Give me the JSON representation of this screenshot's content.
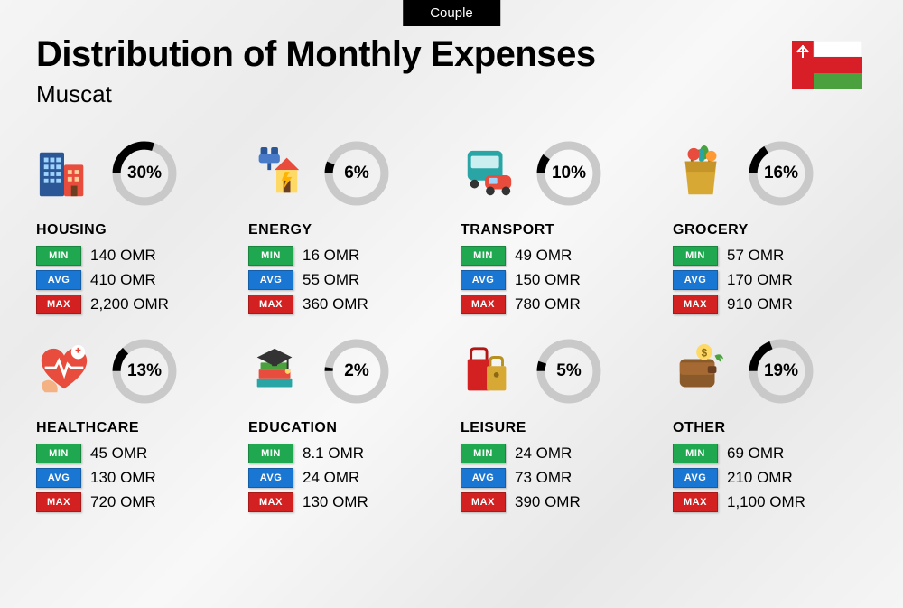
{
  "tag": "Couple",
  "title": "Distribution of Monthly Expenses",
  "subtitle": "Muscat",
  "currency": "OMR",
  "labels": {
    "min": "MIN",
    "avg": "AVG",
    "max": "MAX"
  },
  "colors": {
    "min_badge": "#1fa84f",
    "avg_badge": "#1976d2",
    "max_badge": "#d32020",
    "donut_track": "#c9c9c9",
    "donut_fill": "#000000",
    "background": "#f2f2f2",
    "text": "#000000"
  },
  "donut": {
    "radius": 34,
    "stroke_width": 10
  },
  "flag": {
    "country": "Oman",
    "colors": {
      "red": "#d81e26",
      "white": "#ffffff",
      "green": "#4aa13e",
      "emblem": "#ffffff"
    }
  },
  "categories": [
    {
      "key": "housing",
      "name": "HOUSING",
      "pct": 30,
      "min": "140",
      "avg": "410",
      "max": "2,200",
      "icon": "housing"
    },
    {
      "key": "energy",
      "name": "ENERGY",
      "pct": 6,
      "min": "16",
      "avg": "55",
      "max": "360",
      "icon": "energy"
    },
    {
      "key": "transport",
      "name": "TRANSPORT",
      "pct": 10,
      "min": "49",
      "avg": "150",
      "max": "780",
      "icon": "transport"
    },
    {
      "key": "grocery",
      "name": "GROCERY",
      "pct": 16,
      "min": "57",
      "avg": "170",
      "max": "910",
      "icon": "grocery"
    },
    {
      "key": "healthcare",
      "name": "HEALTHCARE",
      "pct": 13,
      "min": "45",
      "avg": "130",
      "max": "720",
      "icon": "healthcare"
    },
    {
      "key": "education",
      "name": "EDUCATION",
      "pct": 2,
      "min": "8.1",
      "avg": "24",
      "max": "130",
      "icon": "education"
    },
    {
      "key": "leisure",
      "name": "LEISURE",
      "pct": 5,
      "min": "24",
      "avg": "73",
      "max": "390",
      "icon": "leisure"
    },
    {
      "key": "other",
      "name": "OTHER",
      "pct": 19,
      "min": "69",
      "avg": "210",
      "max": "1,100",
      "icon": "other"
    }
  ]
}
